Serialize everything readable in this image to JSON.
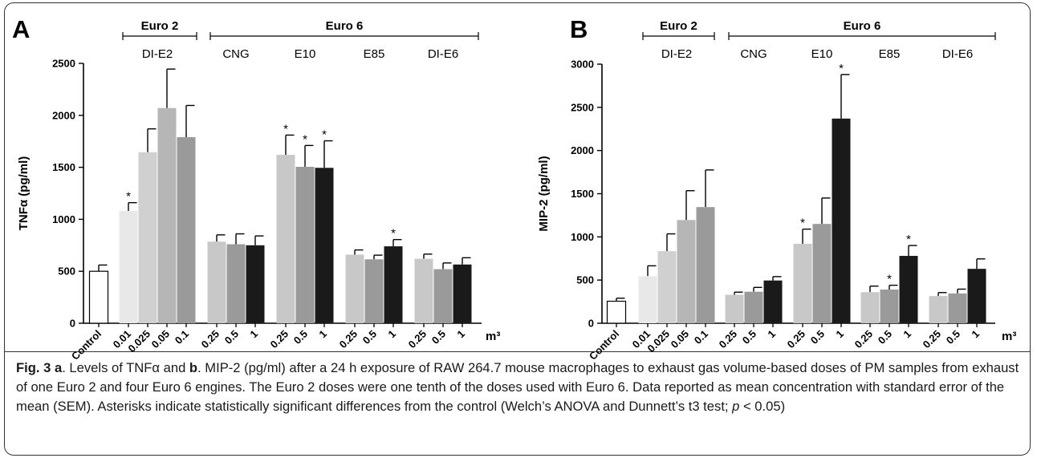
{
  "figure": {
    "caption": {
      "label": "Fig. 3",
      "seg_a": "a",
      "text1": ". Levels of TNFα and ",
      "seg_b": "b",
      "text2": ". MIP-2 (pg/ml) after a 24 h exposure of RAW 264.7 mouse macrophages to exhaust gas volume-based doses of PM samples from exhaust of one Euro 2 and four Euro 6 engines. The Euro 2 doses were one tenth of the doses used with Euro 6. Data reported as mean concentration with standard error of the mean (SEM). Asterisks indicate statistically significant differences from the control (Welch’s ANOVA and Dunnett’s t3 test; ",
      "p_symbol": "p",
      "text3": " < 0.05)"
    }
  },
  "chart_data": [
    {
      "type": "bar",
      "panel_label": "A",
      "ylabel": "TNFα (pg/ml)",
      "ylim": [
        0,
        2500
      ],
      "yticks": [
        0,
        500,
        1000,
        1500,
        2000,
        2500
      ],
      "unit_label": "m³",
      "bar_colors": {
        "control": "#ffffff",
        "c1": "#e8e8e8",
        "c2": "#d0d0d0",
        "c3": "#b6b6b6",
        "c4": "#9a9a9a",
        "g25": "#c8c8c8",
        "g5": "#9a9a9a",
        "g1": "#1a1a1a"
      },
      "categories": [
        "Control",
        "0.01",
        "0.025",
        "0.05",
        "0.1",
        "0.25",
        "0.5",
        "1",
        "0.25",
        "0.5",
        "1",
        "0.25",
        "0.5",
        "1",
        "0.25",
        "0.5",
        "1"
      ],
      "values": [
        500,
        1080,
        1645,
        2070,
        1790,
        785,
        760,
        750,
        1620,
        1505,
        1495,
        660,
        615,
        740,
        620,
        520,
        565
      ],
      "errors": [
        60,
        80,
        225,
        375,
        305,
        65,
        100,
        90,
        190,
        205,
        260,
        45,
        40,
        65,
        45,
        60,
        65
      ],
      "significant": [
        false,
        true,
        false,
        false,
        false,
        false,
        false,
        false,
        true,
        true,
        true,
        false,
        false,
        true,
        false,
        false,
        false
      ],
      "groups": [
        {
          "name": "Control",
          "indices": [
            0
          ]
        },
        {
          "name": "DI-E2",
          "header": "Euro 2",
          "indices": [
            1,
            2,
            3,
            4
          ]
        },
        {
          "name": "CNG",
          "header": "Euro 6",
          "indices": [
            5,
            6,
            7
          ]
        },
        {
          "name": "E10",
          "header": "Euro 6",
          "indices": [
            8,
            9,
            10
          ]
        },
        {
          "name": "E85",
          "header": "Euro 6",
          "indices": [
            11,
            12,
            13
          ]
        },
        {
          "name": "DI-E6",
          "header": "Euro 6",
          "indices": [
            14,
            15,
            16
          ]
        }
      ],
      "header_labels": {
        "euro2": "Euro 2",
        "euro6": "Euro 6"
      },
      "significance_marker": "*"
    },
    {
      "type": "bar",
      "panel_label": "B",
      "ylabel": "MIP-2 (pg/ml)",
      "ylim": [
        0,
        3000
      ],
      "yticks": [
        0,
        500,
        1000,
        1500,
        2000,
        2500,
        3000
      ],
      "unit_label": "m³",
      "bar_colors": {
        "control": "#ffffff",
        "c1": "#e8e8e8",
        "c2": "#d0d0d0",
        "c3": "#b6b6b6",
        "c4": "#9a9a9a",
        "g25": "#c8c8c8",
        "g5": "#9a9a9a",
        "g1": "#1a1a1a"
      },
      "categories": [
        "Control",
        "0.01",
        "0.025",
        "0.05",
        "0.1",
        "0.25",
        "0.5",
        "1",
        "0.25",
        "0.5",
        "1",
        "0.25",
        "0.5",
        "1",
        "0.25",
        "0.5",
        "1"
      ],
      "values": [
        255,
        545,
        835,
        1195,
        1345,
        330,
        365,
        495,
        920,
        1150,
        2370,
        360,
        390,
        780,
        315,
        345,
        630
      ],
      "errors": [
        35,
        120,
        200,
        340,
        430,
        30,
        50,
        45,
        170,
        300,
        510,
        70,
        50,
        120,
        40,
        50,
        115
      ],
      "significant": [
        false,
        false,
        false,
        false,
        false,
        false,
        false,
        false,
        true,
        false,
        true,
        false,
        true,
        true,
        false,
        false,
        false
      ],
      "groups": [
        {
          "name": "Control",
          "indices": [
            0
          ]
        },
        {
          "name": "DI-E2",
          "header": "Euro 2",
          "indices": [
            1,
            2,
            3,
            4
          ]
        },
        {
          "name": "CNG",
          "header": "Euro 6",
          "indices": [
            5,
            6,
            7
          ]
        },
        {
          "name": "E10",
          "header": "Euro 6",
          "indices": [
            8,
            9,
            10
          ]
        },
        {
          "name": "E85",
          "header": "Euro 6",
          "indices": [
            11,
            12,
            13
          ]
        },
        {
          "name": "DI-E6",
          "header": "Euro 6",
          "indices": [
            14,
            15,
            16
          ]
        }
      ],
      "header_labels": {
        "euro2": "Euro 2",
        "euro6": "Euro 6"
      },
      "significance_marker": "*"
    }
  ]
}
